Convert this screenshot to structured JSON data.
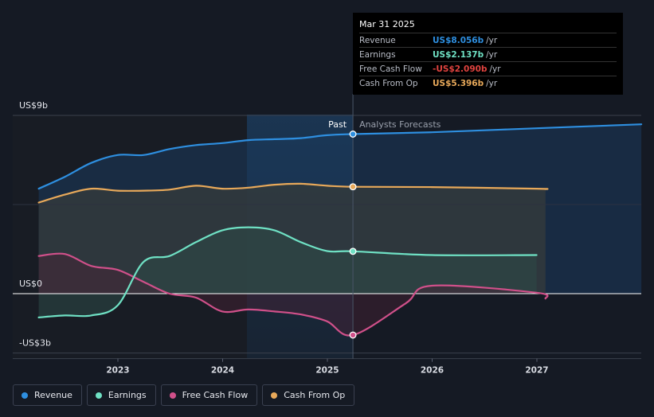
{
  "chart_data": {
    "type": "area",
    "y_unit": "US$ billions",
    "ylim": [
      -3,
      9
    ],
    "y_ticks": [
      {
        "value": 9,
        "label": "US$9b"
      },
      {
        "value": 0,
        "label": "US$0"
      },
      {
        "value": -3,
        "label": "-US$3b"
      }
    ],
    "x_ticks": [
      "2023",
      "2024",
      "2025",
      "2026",
      "2027"
    ],
    "divider_date": "2025-03-31",
    "past_label": "Past",
    "forecast_label": "Analysts Forecasts",
    "series": [
      {
        "name": "Revenue",
        "color": "#2e8fe0",
        "points": [
          [
            "2022-03-31",
            5.3
          ],
          [
            "2022-06-30",
            5.9
          ],
          [
            "2022-09-30",
            6.6
          ],
          [
            "2022-12-31",
            7.0
          ],
          [
            "2023-03-31",
            7.0
          ],
          [
            "2023-06-30",
            7.3
          ],
          [
            "2023-09-30",
            7.5
          ],
          [
            "2023-12-31",
            7.6
          ],
          [
            "2024-03-31",
            7.75
          ],
          [
            "2024-06-30",
            7.8
          ],
          [
            "2024-09-30",
            7.85
          ],
          [
            "2024-12-31",
            8.0
          ],
          [
            "2025-03-31",
            8.056
          ],
          [
            "2025-12-31",
            8.15
          ],
          [
            "2026-12-31",
            8.35
          ],
          [
            "2027-12-31",
            8.55
          ]
        ]
      },
      {
        "name": "Earnings",
        "color": "#6fe1c4",
        "points": [
          [
            "2022-03-31",
            -1.2
          ],
          [
            "2022-06-30",
            -1.1
          ],
          [
            "2022-09-30",
            -1.1
          ],
          [
            "2022-12-31",
            -0.6
          ],
          [
            "2023-03-31",
            1.6
          ],
          [
            "2023-06-30",
            1.9
          ],
          [
            "2023-09-30",
            2.6
          ],
          [
            "2023-12-31",
            3.2
          ],
          [
            "2024-03-31",
            3.35
          ],
          [
            "2024-06-30",
            3.2
          ],
          [
            "2024-09-30",
            2.6
          ],
          [
            "2024-12-31",
            2.15
          ],
          [
            "2025-03-31",
            2.137
          ],
          [
            "2025-12-31",
            1.95
          ],
          [
            "2026-12-31",
            1.95
          ]
        ]
      },
      {
        "name": "Free Cash Flow",
        "color": "#d0508a",
        "points": [
          [
            "2022-03-31",
            1.9
          ],
          [
            "2022-06-30",
            2.0
          ],
          [
            "2022-09-30",
            1.4
          ],
          [
            "2022-12-31",
            1.2
          ],
          [
            "2023-03-31",
            0.6
          ],
          [
            "2023-06-30",
            0.0
          ],
          [
            "2023-09-30",
            -0.2
          ],
          [
            "2023-12-31",
            -0.9
          ],
          [
            "2024-03-31",
            -0.8
          ],
          [
            "2024-06-30",
            -0.9
          ],
          [
            "2024-09-30",
            -1.05
          ],
          [
            "2024-12-31",
            -1.4
          ],
          [
            "2025-03-31",
            -2.09
          ],
          [
            "2025-09-30",
            -0.5
          ],
          [
            "2025-12-31",
            0.4
          ],
          [
            "2026-12-31",
            0.05
          ],
          [
            "2027-01-31",
            -0.25
          ]
        ]
      },
      {
        "name": "Cash From Op",
        "color": "#e8a95a",
        "points": [
          [
            "2022-03-31",
            4.6
          ],
          [
            "2022-06-30",
            5.0
          ],
          [
            "2022-09-30",
            5.3
          ],
          [
            "2022-12-31",
            5.2
          ],
          [
            "2023-03-31",
            5.2
          ],
          [
            "2023-06-30",
            5.25
          ],
          [
            "2023-09-30",
            5.45
          ],
          [
            "2023-12-31",
            5.3
          ],
          [
            "2024-03-31",
            5.35
          ],
          [
            "2024-06-30",
            5.5
          ],
          [
            "2024-09-30",
            5.55
          ],
          [
            "2024-12-31",
            5.45
          ],
          [
            "2025-03-31",
            5.396
          ],
          [
            "2025-12-31",
            5.38
          ],
          [
            "2026-12-31",
            5.3
          ],
          [
            "2027-01-31",
            5.28
          ]
        ]
      }
    ]
  },
  "tooltip": {
    "date": "Mar 31 2025",
    "rows": [
      {
        "label": "Revenue",
        "value": "US$8.056b",
        "unit": "/yr",
        "color": "#2e8fe0"
      },
      {
        "label": "Earnings",
        "value": "US$2.137b",
        "unit": "/yr",
        "color": "#6fe1c4"
      },
      {
        "label": "Free Cash Flow",
        "value": "-US$2.090b",
        "unit": "/yr",
        "color": "#e0433f"
      },
      {
        "label": "Cash From Op",
        "value": "US$5.396b",
        "unit": "/yr",
        "color": "#e8a95a"
      }
    ]
  },
  "legend": [
    {
      "label": "Revenue",
      "color": "#2e8fe0"
    },
    {
      "label": "Earnings",
      "color": "#6fe1c4"
    },
    {
      "label": "Free Cash Flow",
      "color": "#d0508a"
    },
    {
      "label": "Cash From Op",
      "color": "#e8a95a"
    }
  ]
}
